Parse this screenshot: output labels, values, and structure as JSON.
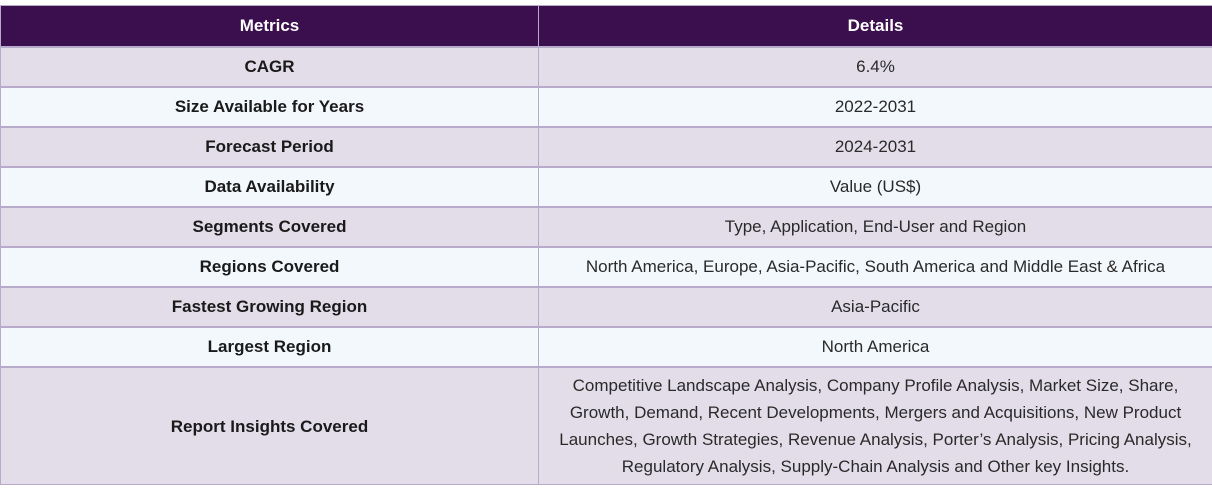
{
  "table": {
    "headers": [
      "Metrics",
      "Details"
    ],
    "rows": [
      {
        "metric": "CAGR",
        "detail": "6.4%"
      },
      {
        "metric": "Size Available for Years",
        "detail": "2022-2031"
      },
      {
        "metric": "Forecast Period",
        "detail": "2024-2031"
      },
      {
        "metric": "Data Availability",
        "detail": "Value (US$)"
      },
      {
        "metric": "Segments Covered",
        "detail": "Type, Application, End-User and Region"
      },
      {
        "metric": "Regions Covered",
        "detail": "North America, Europe, Asia-Pacific, South America and Middle East & Africa"
      },
      {
        "metric": "Fastest Growing Region",
        "detail": "Asia-Pacific"
      },
      {
        "metric": "Largest Region",
        "detail": "North America"
      },
      {
        "metric": "Report Insights Covered",
        "detail": "Competitive Landscape Analysis, Company Profile Analysis, Market Size, Share, Growth, Demand, Recent Developments, Mergers and Acquisitions, New Product Launches, Growth Strategies, Revenue Analysis, Porter’s Analysis, Pricing Analysis, Regulatory Analysis, Supply-Chain Analysis and Other key Insights."
      }
    ],
    "colors": {
      "header_bg": "#3b0e4d",
      "row_odd_bg": "#e2dde8",
      "row_even_bg": "#f3f8fc",
      "border": "#b8aacb"
    }
  }
}
